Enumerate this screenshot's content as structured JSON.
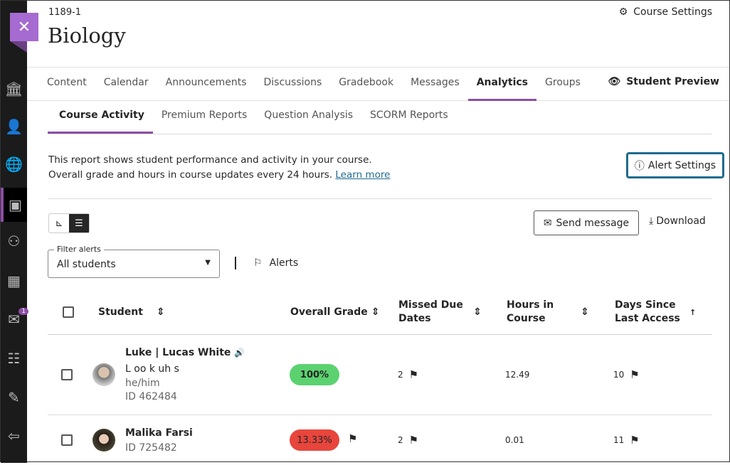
{
  "course": {
    "id": "1189-1",
    "title": "Biology",
    "settings_label": "Course Settings",
    "student_preview": "Student Preview"
  },
  "sidebar": {
    "message_badge": "1"
  },
  "nav": [
    "Content",
    "Calendar",
    "Announcements",
    "Discussions",
    "Gradebook",
    "Messages",
    "Analytics",
    "Groups"
  ],
  "subnav": [
    "Course Activity",
    "Premium Reports",
    "Question Analysis",
    "SCORM Reports"
  ],
  "description": {
    "line1": "This report shows student performance and activity in your course.",
    "line2": "Overall grade and hours in course updates every 24 hours.",
    "link": "Learn more"
  },
  "alert_settings": "Alert Settings",
  "send_message": "Send message",
  "download": "Download",
  "filter": {
    "label": "Filter alerts",
    "value": "All students"
  },
  "alerts_label": "Alerts",
  "columns": {
    "student": "Student",
    "grade": "Overall Grade",
    "missed1": "Missed Due",
    "missed2": "Dates",
    "hours1": "Hours in",
    "hours2": "Course",
    "days1": "Days Since",
    "days2": "Last Access"
  },
  "rows": [
    {
      "name": "Luke | Lucas White",
      "pronunciation": "L oo k uh s",
      "pronouns": "he/him",
      "id": "ID 462484",
      "grade": "100%",
      "grade_color": "#5bd26f",
      "missed": "2",
      "hours": "12.49",
      "days": "10"
    },
    {
      "name": "Malika Farsi",
      "id": "ID 725482",
      "grade": "13.33%",
      "grade_color": "#e8453c",
      "missed": "2",
      "hours": "0.01",
      "days": "11"
    }
  ],
  "colors": {
    "accent": "#8d4da6",
    "link": "#1f6b8f"
  }
}
